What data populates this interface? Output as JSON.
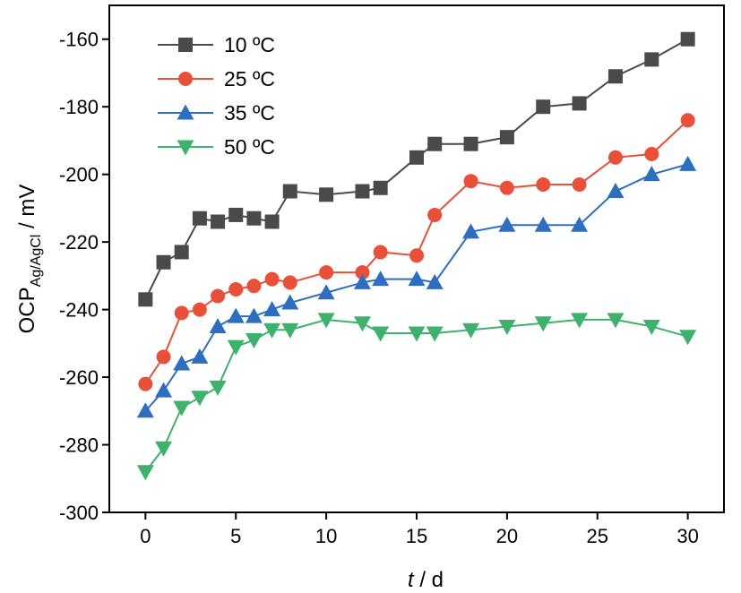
{
  "chart_data": {
    "type": "line",
    "title": "",
    "xlabel": {
      "italic": "t",
      "rest": " / d"
    },
    "ylabel": {
      "main": "OCP",
      "sub": "Ag/AgCl",
      "rest": " / mV"
    },
    "xlim": [
      -2,
      32
    ],
    "ylim": [
      -300,
      -150
    ],
    "xticks": [
      0,
      5,
      10,
      15,
      20,
      25,
      30
    ],
    "yticks": [
      -300,
      -280,
      -260,
      -240,
      -220,
      -200,
      -180,
      -160
    ],
    "grid": false,
    "legend_position": "top-left",
    "series": [
      {
        "name": "10 ºC",
        "color": "#4a4a4a",
        "marker": "square",
        "x": [
          0,
          1,
          2,
          3,
          4,
          5,
          6,
          7,
          8,
          10,
          12,
          13,
          15,
          16,
          18,
          20,
          22,
          24,
          26,
          28,
          30
        ],
        "y": [
          -237,
          -226,
          -223,
          -213,
          -214,
          -212,
          -213,
          -214,
          -205,
          -206,
          -205,
          -204,
          -195,
          -191,
          -191,
          -189,
          -180,
          -179,
          -171,
          -166,
          -160
        ]
      },
      {
        "name": "25 ºC",
        "color": "#e8503a",
        "marker": "circle",
        "x": [
          0,
          1,
          2,
          3,
          4,
          5,
          6,
          7,
          8,
          10,
          12,
          13,
          15,
          16,
          18,
          20,
          22,
          24,
          26,
          28,
          30
        ],
        "y": [
          -262,
          -254,
          -241,
          -240,
          -236,
          -234,
          -233,
          -231,
          -232,
          -229,
          -229,
          -223,
          -224,
          -212,
          -202,
          -204,
          -203,
          -203,
          -195,
          -194,
          -184
        ]
      },
      {
        "name": "35 ºC",
        "color": "#2e6ec0",
        "marker": "triangle-up",
        "x": [
          0,
          1,
          2,
          3,
          4,
          5,
          6,
          7,
          8,
          10,
          12,
          13,
          15,
          16,
          18,
          20,
          22,
          24,
          26,
          28,
          30
        ],
        "y": [
          -270,
          -264,
          -256,
          -254,
          -245,
          -242,
          -242,
          -240,
          -238,
          -235,
          -232,
          -231,
          -231,
          -232,
          -217,
          -215,
          -215,
          -215,
          -205,
          -200,
          -197
        ]
      },
      {
        "name": "50 ºC",
        "color": "#3eb16d",
        "marker": "triangle-down",
        "x": [
          0,
          1,
          2,
          3,
          4,
          5,
          6,
          7,
          8,
          10,
          12,
          13,
          15,
          16,
          18,
          20,
          22,
          24,
          26,
          28,
          30
        ],
        "y": [
          -288,
          -281,
          -269,
          -266,
          -263,
          -251,
          -249,
          -246,
          -246,
          -243,
          -244,
          -247,
          -247,
          -247,
          -246,
          -245,
          -244,
          -243,
          -243,
          -245,
          -248
        ]
      }
    ]
  }
}
